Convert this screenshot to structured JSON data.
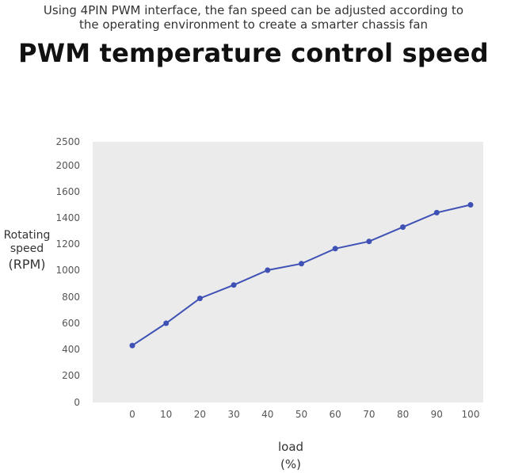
{
  "header": {
    "subtitle_line1": "Using 4PIN PWM interface, the fan speed can be adjusted according to",
    "subtitle_line2": "the operating environment to create a smarter chassis fan",
    "title": "PWM temperature control speed"
  },
  "colors": {
    "plot_background": "#ebebeb",
    "series": "#3f51b5"
  },
  "chart_data": {
    "type": "line",
    "title": "PWM temperature control speed",
    "xlabel_line1": "load",
    "xlabel_line2": "(%)",
    "ylabel_line1": "Rotating",
    "ylabel_line2": "speed",
    "ylabel_line3": "(RPM)",
    "x": [
      0,
      10,
      20,
      30,
      40,
      50,
      60,
      70,
      80,
      90,
      100
    ],
    "series": [
      {
        "values": [
          430,
          600,
          790,
          890,
          1000,
          1050,
          1165,
          1220,
          1330,
          1440,
          1500
        ]
      }
    ],
    "yticks": [
      0,
      200,
      400,
      600,
      800,
      1000,
      1200,
      1400,
      1600,
      2000,
      2500
    ],
    "ylim": [
      0,
      2500
    ],
    "xlim": [
      -10,
      100
    ],
    "grid": false,
    "legend": "none"
  }
}
